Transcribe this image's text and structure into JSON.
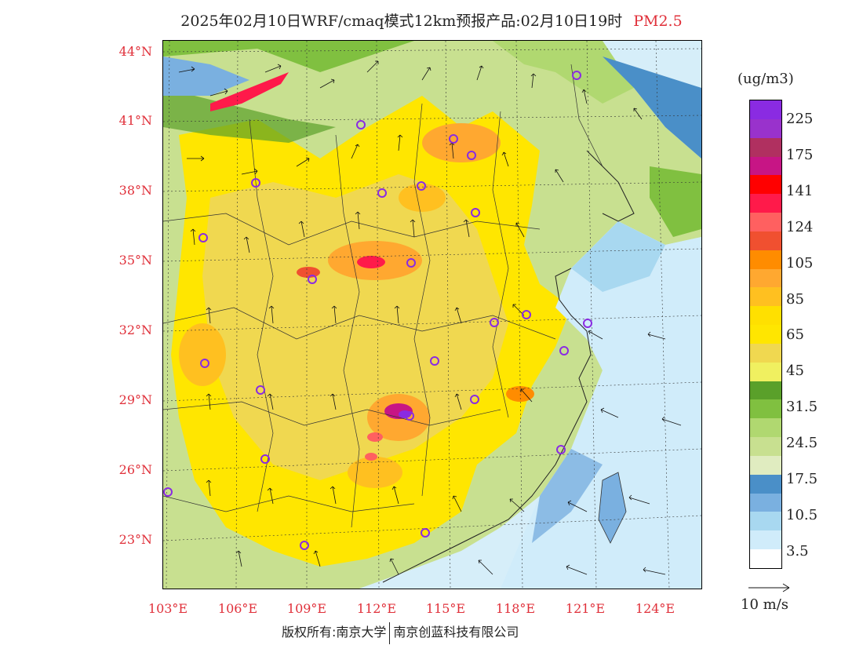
{
  "title": {
    "main": "2025年02月10日WRF/cmaq模式12km预报产品:02月10日19时",
    "pollutant": "PM2.5"
  },
  "axes": {
    "latitudes": [
      "44°N",
      "41°N",
      "38°N",
      "35°N",
      "32°N",
      "29°N",
      "26°N",
      "23°N"
    ],
    "longitudes": [
      "103°E",
      "106°E",
      "109°E",
      "112°E",
      "115°E",
      "118°E",
      "121°E",
      "124°E"
    ]
  },
  "legend": {
    "unit": "(ug/m3)",
    "labels": [
      "225",
      "175",
      "141",
      "124",
      "105",
      "85",
      "65",
      "45",
      "31.5",
      "24.5",
      "17.5",
      "10.5",
      "3.5"
    ],
    "colors": [
      "#8a2be2",
      "#9932cc",
      "#b03060",
      "#c71585",
      "#ff0000",
      "#ff1a4a",
      "#ff6060",
      "#f05030",
      "#ff8c00",
      "#ffa830",
      "#ffc020",
      "#ffe000",
      "#ffe600",
      "#f0d850",
      "#f0f060",
      "#5aa02a",
      "#80c040",
      "#b0d870",
      "#c8e090",
      "#e0ecc0",
      "#4a8fc8",
      "#7ab0e0",
      "#a8d8f0",
      "#d0ecfa",
      "#ffffff"
    ],
    "wind_reference": "10 m/s"
  },
  "footer": {
    "copyright": "版权所有:南京大学",
    "company": "南京创蓝科技有限公司"
  }
}
